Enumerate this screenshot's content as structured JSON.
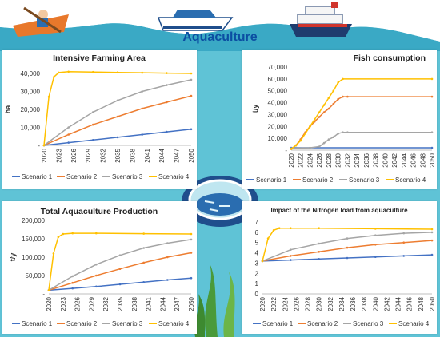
{
  "page": {
    "title": "Aquaculture",
    "colors": {
      "scenario1": "#4472c4",
      "scenario2": "#ed7d31",
      "scenario3": "#a5a5a5",
      "scenario4": "#ffc000",
      "water": "#5fc3d6",
      "title": "#0b4ea2"
    }
  },
  "chart_data": [
    {
      "type": "line",
      "title": "Intensive Farming Area",
      "ylabel": "ha",
      "ylim": [
        0,
        40000
      ],
      "yticks": [
        "-",
        "10,000",
        "20,000",
        "30,000",
        "40,000"
      ],
      "xticks": [
        "2020",
        "2023",
        "2026",
        "2029",
        "2032",
        "2035",
        "2038",
        "2041",
        "2044",
        "2047",
        "2050"
      ],
      "xrange": [
        2020,
        2050
      ],
      "series": [
        {
          "name": "Scenario 1",
          "x": [
            2020,
            2025,
            2030,
            2035,
            2040,
            2045,
            2050
          ],
          "y": [
            0,
            1500,
            3000,
            4500,
            6000,
            7500,
            9000
          ]
        },
        {
          "name": "Scenario 2",
          "x": [
            2020,
            2025,
            2030,
            2035,
            2040,
            2045,
            2050
          ],
          "y": [
            0,
            6000,
            11500,
            16000,
            20500,
            24000,
            27500
          ]
        },
        {
          "name": "Scenario 3",
          "x": [
            2020,
            2025,
            2030,
            2035,
            2040,
            2045,
            2050
          ],
          "y": [
            0,
            10000,
            18500,
            25000,
            30000,
            33500,
            36500
          ]
        },
        {
          "name": "Scenario 4",
          "x": [
            2020,
            2021,
            2022,
            2023,
            2025,
            2030,
            2035,
            2040,
            2045,
            2050
          ],
          "y": [
            0,
            27000,
            38000,
            40500,
            41000,
            40800,
            40600,
            40400,
            40200,
            40000
          ]
        }
      ]
    },
    {
      "type": "line",
      "title": "Fish consumption",
      "ylabel": "t/y",
      "ylim": [
        0,
        70000
      ],
      "yticks": [
        "-",
        "10,000",
        "20,000",
        "30,000",
        "40,000",
        "50,000",
        "60,000",
        "70,000"
      ],
      "xticks": [
        "2020",
        "2022",
        "2024",
        "2026",
        "2028",
        "2030",
        "2032",
        "2034",
        "2036",
        "2038",
        "2040",
        "2042",
        "2044",
        "2046",
        "2048",
        "2050"
      ],
      "xrange": [
        2020,
        2050
      ],
      "series": [
        {
          "name": "Scenario 1",
          "x": [
            2020,
            2050
          ],
          "y": [
            2000,
            2000
          ]
        },
        {
          "name": "Scenario 2",
          "x": [
            2020,
            2021,
            2022,
            2023,
            2024,
            2025,
            2026,
            2027,
            2028,
            2029,
            2030,
            2031,
            2032,
            2050
          ],
          "y": [
            1000,
            4000,
            9000,
            15000,
            20000,
            24000,
            28000,
            32000,
            35000,
            39000,
            43000,
            45000,
            45000,
            45000
          ]
        },
        {
          "name": "Scenario 3",
          "x": [
            2020,
            2024,
            2026,
            2027,
            2028,
            2029,
            2030,
            2031,
            2032,
            2050
          ],
          "y": [
            1500,
            2000,
            3000,
            6000,
            9000,
            11000,
            14000,
            15000,
            15000,
            15000
          ]
        },
        {
          "name": "Scenario 4",
          "x": [
            2020,
            2021,
            2022,
            2023,
            2024,
            2025,
            2026,
            2027,
            2028,
            2029,
            2030,
            2031,
            2050
          ],
          "y": [
            1000,
            4000,
            8000,
            14000,
            20000,
            26000,
            32000,
            38000,
            44000,
            50000,
            57000,
            60000,
            60000
          ]
        }
      ]
    },
    {
      "type": "line",
      "title": "Total Aquaculture Production",
      "ylabel": "t/y",
      "ylim": [
        0,
        200000
      ],
      "yticks": [
        "-",
        "50,000",
        "100,000",
        "150,000",
        "200,000"
      ],
      "xticks": [
        "2020",
        "2023",
        "2026",
        "2029",
        "2032",
        "2035",
        "2038",
        "2041",
        "2044",
        "2047",
        "2050"
      ],
      "xrange": [
        2020,
        2050
      ],
      "series": [
        {
          "name": "Scenario 1",
          "x": [
            2020,
            2025,
            2030,
            2035,
            2040,
            2045,
            2050
          ],
          "y": [
            10000,
            15000,
            20000,
            26000,
            32000,
            38000,
            43000
          ]
        },
        {
          "name": "Scenario 2",
          "x": [
            2020,
            2025,
            2030,
            2035,
            2040,
            2045,
            2050
          ],
          "y": [
            10000,
            30000,
            50000,
            68000,
            85000,
            100000,
            112000
          ]
        },
        {
          "name": "Scenario 3",
          "x": [
            2020,
            2025,
            2030,
            2035,
            2040,
            2045,
            2050
          ],
          "y": [
            10000,
            48000,
            80000,
            105000,
            125000,
            138000,
            148000
          ]
        },
        {
          "name": "Scenario 4",
          "x": [
            2020,
            2021,
            2022,
            2023,
            2025,
            2030,
            2040,
            2050
          ],
          "y": [
            10000,
            110000,
            155000,
            163000,
            165000,
            165000,
            164000,
            163000
          ]
        }
      ]
    },
    {
      "type": "line",
      "title": "Impact of the Nitrogen load from aquaculture",
      "ylabel": "",
      "ylim": [
        0,
        7
      ],
      "yticks": [
        "0",
        "1",
        "2",
        "3",
        "4",
        "5",
        "6",
        "7"
      ],
      "xticks": [
        "2020",
        "2022",
        "2024",
        "2026",
        "2028",
        "2030",
        "2032",
        "2034",
        "2036",
        "2038",
        "2040",
        "2042",
        "2044",
        "2046",
        "2048",
        "2050"
      ],
      "xrange": [
        2020,
        2050
      ],
      "series": [
        {
          "name": "Scenario 1",
          "x": [
            2020,
            2025,
            2030,
            2035,
            2040,
            2045,
            2050
          ],
          "y": [
            3.2,
            3.3,
            3.4,
            3.5,
            3.6,
            3.7,
            3.8
          ]
        },
        {
          "name": "Scenario 2",
          "x": [
            2020,
            2025,
            2030,
            2035,
            2040,
            2045,
            2050
          ],
          "y": [
            3.2,
            3.7,
            4.1,
            4.5,
            4.8,
            5.0,
            5.2
          ]
        },
        {
          "name": "Scenario 3",
          "x": [
            2020,
            2025,
            2030,
            2035,
            2040,
            2045,
            2050
          ],
          "y": [
            3.2,
            4.3,
            4.9,
            5.4,
            5.7,
            5.9,
            6.0
          ]
        },
        {
          "name": "Scenario 4",
          "x": [
            2020,
            2021,
            2022,
            2023,
            2025,
            2030,
            2040,
            2050
          ],
          "y": [
            3.2,
            5.4,
            6.2,
            6.4,
            6.4,
            6.4,
            6.35,
            6.3
          ]
        }
      ]
    }
  ]
}
